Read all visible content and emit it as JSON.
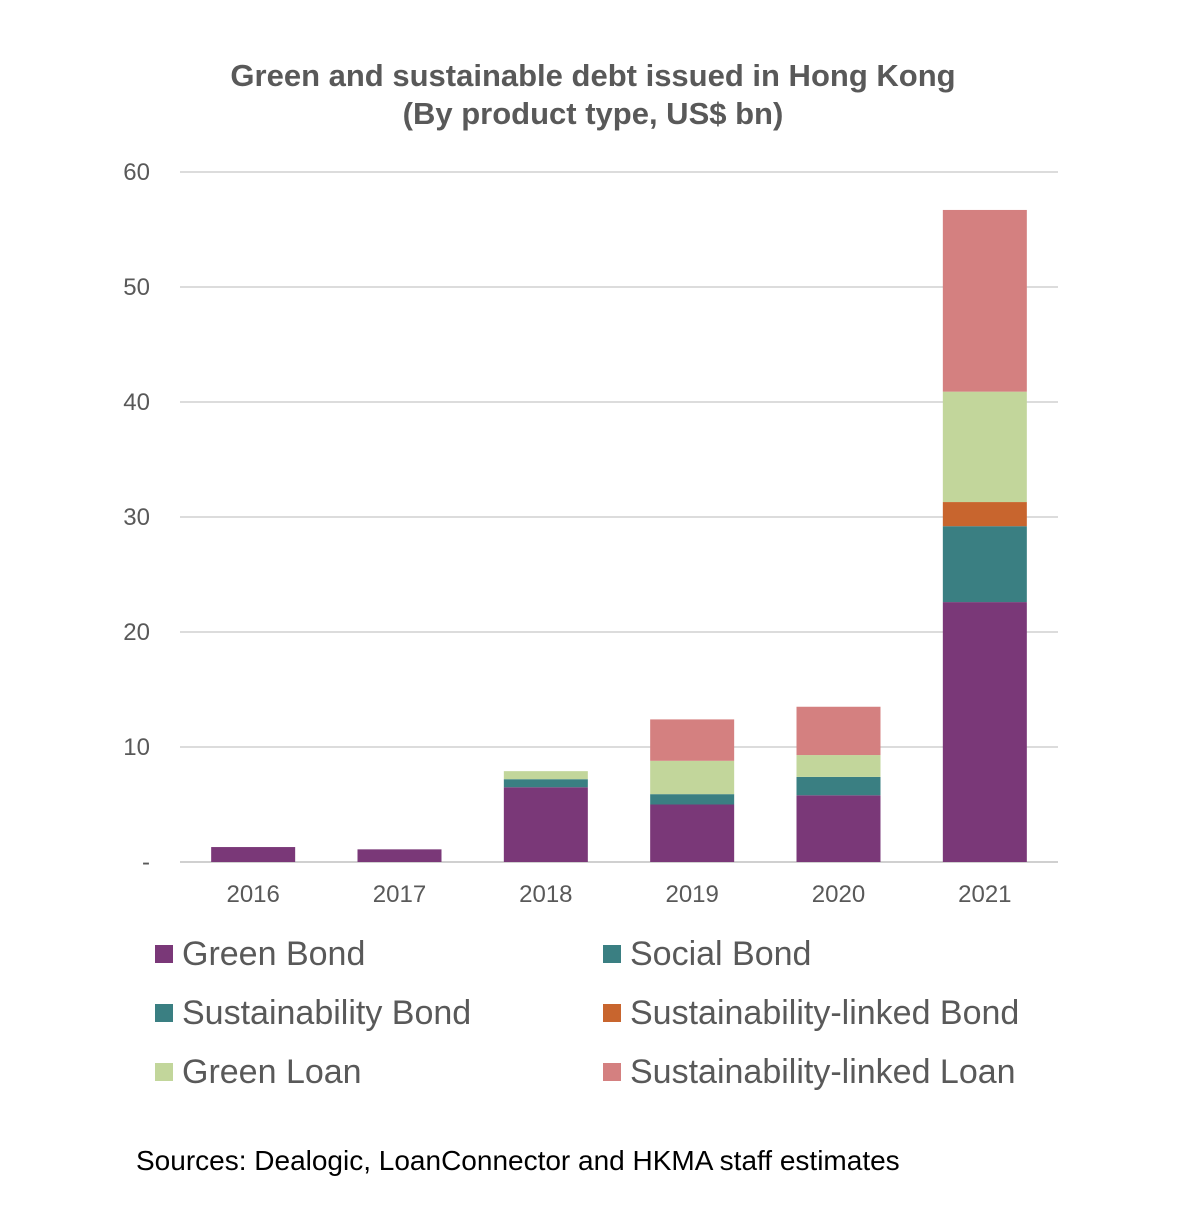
{
  "chart_data": {
    "type": "bar",
    "stacked": true,
    "title": "Green and sustainable debt issued in Hong Kong",
    "subtitle": "(By product type, US$ bn)",
    "categories": [
      "2016",
      "2017",
      "2018",
      "2019",
      "2020",
      "2021"
    ],
    "series": [
      {
        "name": "Green Bond",
        "color": "#7a3878",
        "values": [
          1.3,
          1.1,
          6.5,
          5.0,
          5.8,
          22.6
        ]
      },
      {
        "name": "Social Bond",
        "color": "#3a7f82",
        "values": [
          0,
          0,
          0,
          0,
          0,
          0
        ]
      },
      {
        "name": "Sustainability Bond",
        "color": "#3a7f82",
        "values": [
          0,
          0,
          0.7,
          0.9,
          1.6,
          6.6
        ]
      },
      {
        "name": "Sustainability-linked Bond",
        "color": "#c8652e",
        "values": [
          0,
          0,
          0,
          0,
          0,
          2.1
        ]
      },
      {
        "name": "Green Loan",
        "color": "#c2d69b",
        "values": [
          0,
          0,
          0.7,
          2.9,
          1.9,
          9.6
        ]
      },
      {
        "name": "Sustainability-linked Loan",
        "color": "#d48080",
        "values": [
          0,
          0,
          0,
          3.6,
          4.2,
          15.8
        ]
      }
    ],
    "y_ticks": [
      "-",
      "10",
      "20",
      "30",
      "40",
      "50",
      "60"
    ],
    "ylim": [
      0,
      60
    ],
    "grid": true,
    "legend_position": "bottom"
  },
  "source_note": "Sources: Dealogic, LoanConnector and HKMA staff estimates"
}
